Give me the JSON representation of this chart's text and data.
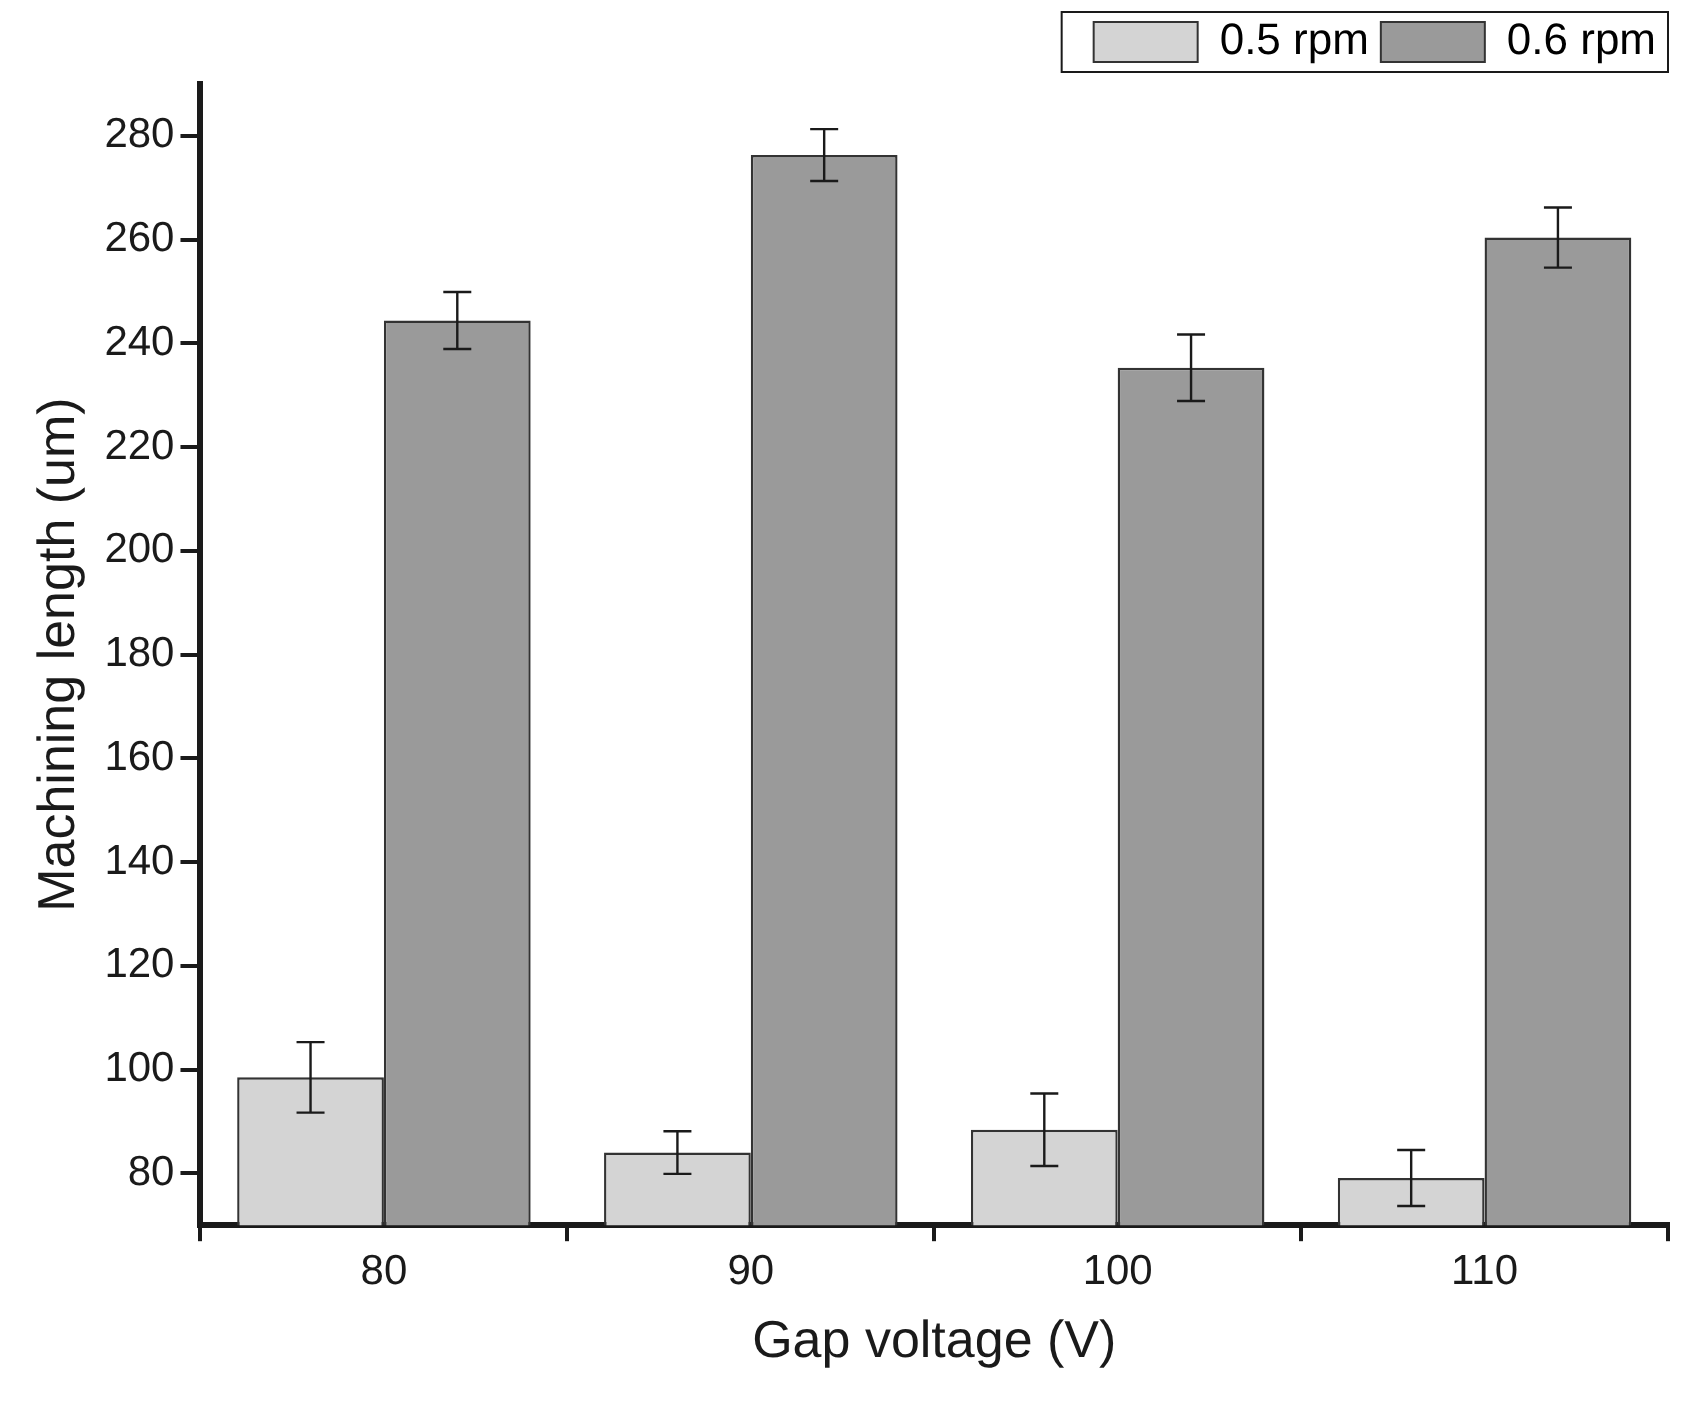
{
  "chart_data": {
    "type": "bar",
    "xlabel": "Gap voltage (V)",
    "ylabel": "Machining length (um)",
    "categories": [
      "80",
      "90",
      "100",
      "110"
    ],
    "series": [
      {
        "name": "0.5 rpm",
        "color": "#d4d4d4",
        "values": [
          98.5,
          84,
          88.4,
          79.1
        ],
        "errors": [
          6.8,
          4.1,
          7,
          5.4
        ]
      },
      {
        "name": "0.6 rpm",
        "color": "#9a9a9a",
        "values": [
          244.4,
          276.3,
          235.3,
          260.4
        ],
        "errors": [
          5.5,
          5,
          6.4,
          5.8
        ]
      }
    ],
    "ylim": [
      70,
      290
    ],
    "yticks": [
      80,
      100,
      120,
      140,
      160,
      180,
      200,
      220,
      240,
      260,
      280
    ],
    "grid": false,
    "legend": "top right"
  }
}
